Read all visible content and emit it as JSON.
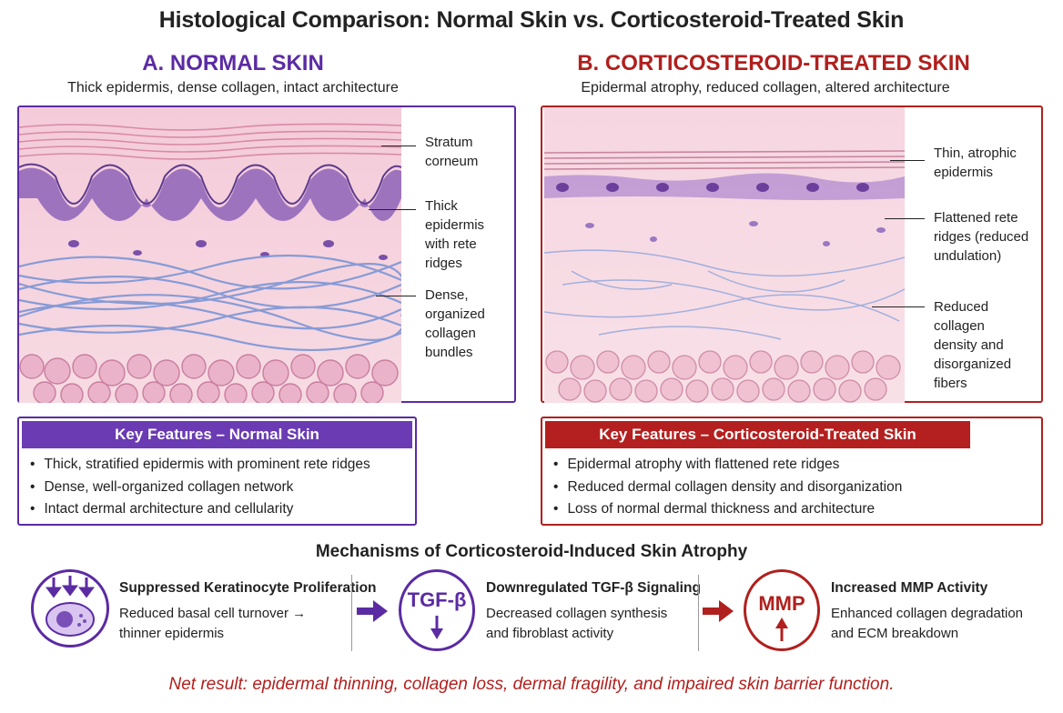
{
  "title": "Histological Comparison: Normal Skin vs. Corticosteroid-Treated Skin",
  "panel_a": {
    "title": "A. NORMAL SKIN",
    "subtitle": "Thick epidermis, dense collagen, intact architecture",
    "callouts": [
      {
        "lines": [
          "Stratum",
          "corneum"
        ]
      },
      {
        "lines": [
          "Thick epidermis",
          "with rete ridges"
        ]
      },
      {
        "lines": [
          "Dense,",
          "organized",
          "collagen",
          "bundles"
        ]
      }
    ],
    "features_title": "Key Features – Normal Skin",
    "features": [
      "Thick, stratified epidermis with prominent rete ridges",
      "Dense, well-organized collagen network",
      "Intact dermal architecture and cellularity"
    ]
  },
  "panel_b": {
    "title": "B. CORTICOSTEROID-TREATED SKIN",
    "subtitle": "Epidermal atrophy, reduced collagen, altered architecture",
    "callouts": [
      {
        "lines": [
          "Thin, atrophic",
          "epidermis"
        ]
      },
      {
        "lines": [
          "Flattened rete",
          "ridges (reduced",
          "undulation)"
        ]
      },
      {
        "lines": [
          "Reduced collagen",
          "density and",
          "disorganized",
          "fibers"
        ]
      }
    ],
    "features_title": "Key Features – Corticosteroid-Treated Skin",
    "features": [
      "Epidermal atrophy with flattened rete ridges",
      "Reduced dermal collagen density and disorganization",
      "Loss of normal dermal thickness and architecture"
    ]
  },
  "mechanisms": {
    "title": "Mechanisms of Corticosteroid-Induced Skin Atrophy",
    "items": [
      {
        "heading": "Suppressed Keratinocyte Proliferation",
        "lines": [
          "Reduced basal cell turnover →",
          "thinner epidermis"
        ],
        "icon": "keratinocyte-icon"
      },
      {
        "heading": "Downregulated TGF-β Signaling",
        "lines": [
          "Decreased collagen synthesis",
          "and fibroblast activity"
        ],
        "icon_label": "TGF-β",
        "icon": "tgf-beta-icon"
      },
      {
        "heading": "Increased MMP Activity",
        "lines": [
          "Enhanced collagen degradation",
          "and ECM breakdown"
        ],
        "icon_label": "MMP",
        "icon": "mmp-icon"
      }
    ]
  },
  "net_result": "Net result: epidermal thinning, collagen loss, dermal fragility, and impaired skin barrier function.",
  "colors": {
    "purple": "#5b2ba3",
    "purple_box": "#6a3bb3",
    "red": "#b0201e",
    "red_box": "#b3201f",
    "skin_pink": "#f2c4d6",
    "collagen_blue": "#7b95d6"
  }
}
